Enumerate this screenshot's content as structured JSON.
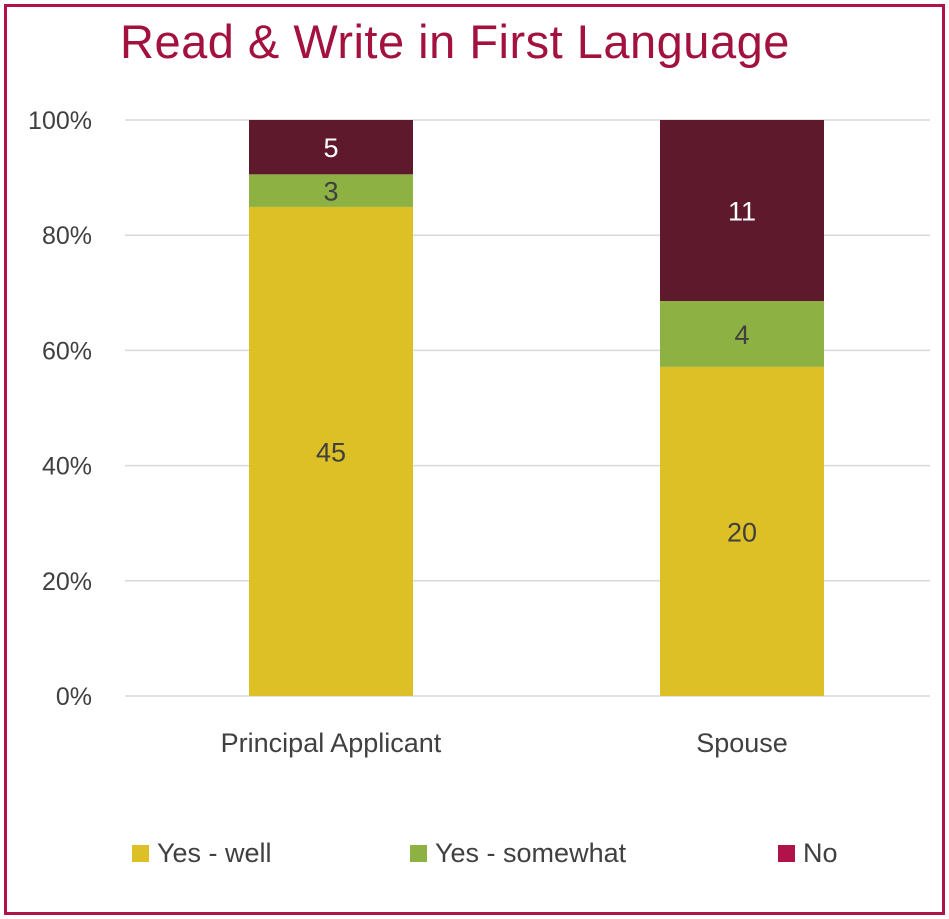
{
  "title": "Read & Write in First Language",
  "chart_data": {
    "type": "bar",
    "stacked": true,
    "normalized": true,
    "title": "Read & Write in First Language",
    "categories": [
      "Principal Applicant",
      "Spouse"
    ],
    "series": [
      {
        "name": "Yes - well",
        "values": [
          45,
          20
        ],
        "color": "#DCC025",
        "label_color": "#404040"
      },
      {
        "name": "Yes - somewhat",
        "values": [
          3,
          4
        ],
        "color": "#8DB243",
        "label_color": "#404040"
      },
      {
        "name": "No",
        "values": [
          5,
          11
        ],
        "color": "#5E1A2C",
        "label_color": "#ffffff"
      }
    ],
    "y_ticks": [
      "0%",
      "20%",
      "40%",
      "60%",
      "80%",
      "100%"
    ],
    "ylim": [
      0,
      100
    ],
    "grid": true,
    "legend_position": "bottom",
    "legend_swatch_colors": [
      "#DCC025",
      "#8DB243",
      "#B0134A"
    ]
  }
}
